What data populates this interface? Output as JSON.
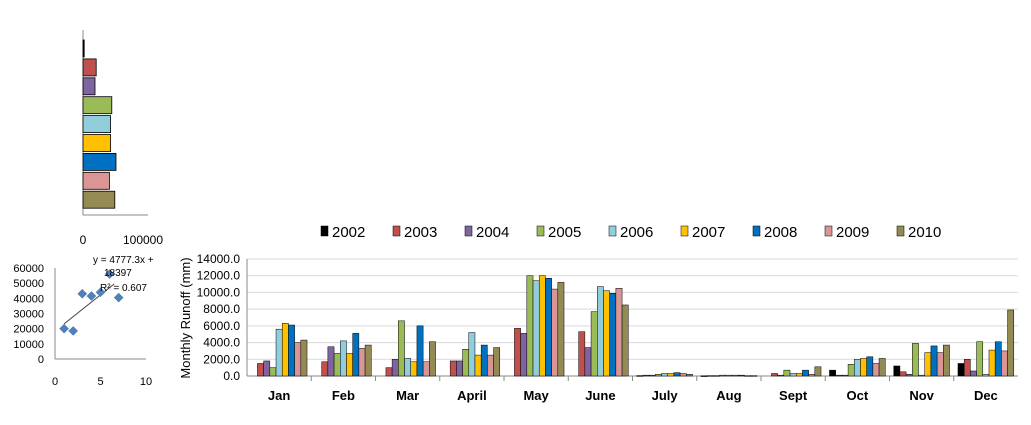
{
  "colors": {
    "2002": "#000000",
    "2003": "#C0504D",
    "2004": "#8064A2",
    "2005": "#9BBB59",
    "2006": "#92CDDC",
    "2007": "#FFC000",
    "2008": "#0070C0",
    "2009": "#D99694",
    "2010": "#948A54",
    "scatter_marker": "#4F81BD"
  },
  "chart_data": [
    {
      "type": "bar",
      "orientation": "horizontal",
      "series": [
        {
          "name": "2002",
          "value": 2000
        },
        {
          "name": "2003",
          "value": 22000
        },
        {
          "name": "2004",
          "value": 20000
        },
        {
          "name": "2005",
          "value": 48000
        },
        {
          "name": "2006",
          "value": 46000
        },
        {
          "name": "2007",
          "value": 46000
        },
        {
          "name": "2008",
          "value": 55000
        },
        {
          "name": "2009",
          "value": 44000
        },
        {
          "name": "2010",
          "value": 53000
        }
      ],
      "xlim": [
        0,
        100000
      ],
      "xticks": [
        "0",
        "100000"
      ]
    },
    {
      "type": "scatter",
      "points": [
        {
          "x": 1,
          "y": 20000
        },
        {
          "x": 2,
          "y": 18500
        },
        {
          "x": 3,
          "y": 43000
        },
        {
          "x": 4,
          "y": 41500
        },
        {
          "x": 5,
          "y": 44000
        },
        {
          "x": 6,
          "y": 56000
        },
        {
          "x": 7,
          "y": 40500
        }
      ],
      "trendline": {
        "slope": 4777.3,
        "intercept": 18397
      },
      "annotation": {
        "line1": "y = 4777.3x +",
        "line2": "18397",
        "line3": "R² = 0.607"
      },
      "xlim": [
        0,
        10
      ],
      "ylim": [
        0,
        60000
      ],
      "xticks": [
        "0",
        "5",
        "10"
      ],
      "yticks": [
        "0",
        "10000",
        "20000",
        "30000",
        "40000",
        "50000",
        "60000"
      ]
    },
    {
      "type": "bar",
      "ylabel": "Monthly Runoff (mm)",
      "ylim": [
        0,
        14000
      ],
      "yticks": [
        "0.0",
        "2000.0",
        "4000.0",
        "6000.0",
        "8000.0",
        "10000.0",
        "12000.0",
        "14000.0"
      ],
      "categories": [
        "Jan",
        "Feb",
        "Mar",
        "April",
        "May",
        "June",
        "July",
        "Aug",
        "Sept",
        "Oct",
        "Nov",
        "Dec"
      ],
      "legend_position": "top",
      "series": [
        {
          "name": "2002",
          "values": [
            0,
            0,
            0,
            0,
            0,
            0,
            50,
            30,
            0,
            700,
            1200,
            1500
          ]
        },
        {
          "name": "2003",
          "values": [
            1500,
            1700,
            1000,
            1800,
            5700,
            5300,
            100,
            50,
            300,
            100,
            500,
            2000
          ]
        },
        {
          "name": "2004",
          "values": [
            1800,
            3500,
            2000,
            1800,
            5100,
            3400,
            100,
            50,
            100,
            100,
            200,
            600
          ]
        },
        {
          "name": "2005",
          "values": [
            1000,
            2700,
            6600,
            3200,
            12000,
            7700,
            200,
            100,
            700,
            1400,
            3900,
            4100
          ]
        },
        {
          "name": "2006",
          "values": [
            5600,
            4200,
            2100,
            5200,
            11400,
            10700,
            300,
            100,
            300,
            2000,
            100,
            200
          ]
        },
        {
          "name": "2007",
          "values": [
            6300,
            2700,
            1700,
            2500,
            12000,
            10200,
            300,
            100,
            300,
            2100,
            2800,
            3100
          ]
        },
        {
          "name": "2008",
          "values": [
            6100,
            5100,
            6000,
            3700,
            11700,
            9900,
            400,
            100,
            700,
            2300,
            3600,
            4100
          ]
        },
        {
          "name": "2009",
          "values": [
            4000,
            3300,
            1700,
            2500,
            10400,
            10500,
            300,
            50,
            200,
            1500,
            2800,
            3000
          ]
        },
        {
          "name": "2010",
          "values": [
            4300,
            3700,
            4100,
            3400,
            11200,
            8500,
            200,
            50,
            1100,
            2100,
            3700,
            7900
          ]
        }
      ]
    }
  ]
}
